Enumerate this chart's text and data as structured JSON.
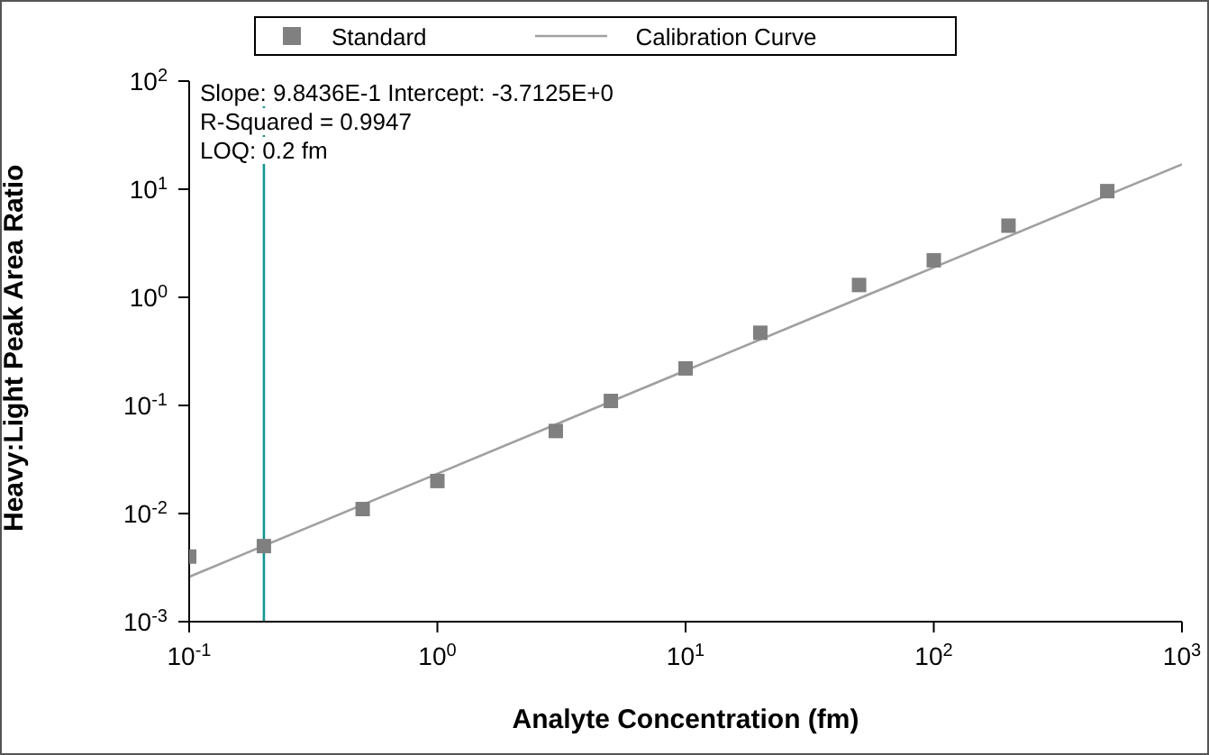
{
  "chart_data": {
    "type": "scatter",
    "xlabel": "Analyte Concentration (fm)",
    "ylabel": "Heavy:Light Peak Area Ratio",
    "log": "xy",
    "legend": "top",
    "marker": "square",
    "grid": false,
    "xlim": [
      0.1,
      1000
    ],
    "xticks": [
      {
        "value": 0.1,
        "label": "10$^{-1}$"
      },
      {
        "value": 1,
        "label": "10$^{0}$"
      },
      {
        "value": 10,
        "label": "10$^{1}$"
      },
      {
        "value": 100,
        "label": "10$^{2}$"
      },
      {
        "value": 1000,
        "label": "10$^{3}$"
      }
    ],
    "ylim": [
      0.001,
      100
    ],
    "yticks": [
      {
        "value": 0.001,
        "label": "10$^{-3}$"
      },
      {
        "value": 0.01,
        "label": "10$^{-2}$"
      },
      {
        "value": 0.1,
        "label": "10$^{-1}$"
      },
      {
        "value": 1,
        "label": "10$^{0}$"
      },
      {
        "value": 10,
        "label": "10$^{1}$"
      },
      {
        "value": 100,
        "label": "10$^{2}$"
      }
    ],
    "series": [
      {
        "name": "Standard",
        "color": "#808080",
        "x": [
          0.1,
          0.2,
          0.5,
          1,
          3,
          5,
          10,
          20,
          50,
          100,
          200,
          500
        ],
        "values": [
          0.004,
          0.005,
          0.011,
          0.02,
          0.058,
          0.11,
          0.22,
          0.47,
          1.3,
          2.2,
          4.6,
          9.6
        ]
      },
      {
        "name": "Calibration Curve",
        "type": "line",
        "color": "#a0a0a0",
        "marker": "none",
        "x": [
          0.1,
          1000
        ],
        "values": [
          0.0026,
          17
        ]
      }
    ],
    "ref_lines": [
      {
        "axis": "x",
        "value": 0.2,
        "color": "#13958f"
      }
    ],
    "annotations": [
      "Slope: 9.8436E-1 Intercept: -3.7125E+0",
      "R-Squared = 0.9947",
      "LOQ: 0.2 fm"
    ]
  }
}
